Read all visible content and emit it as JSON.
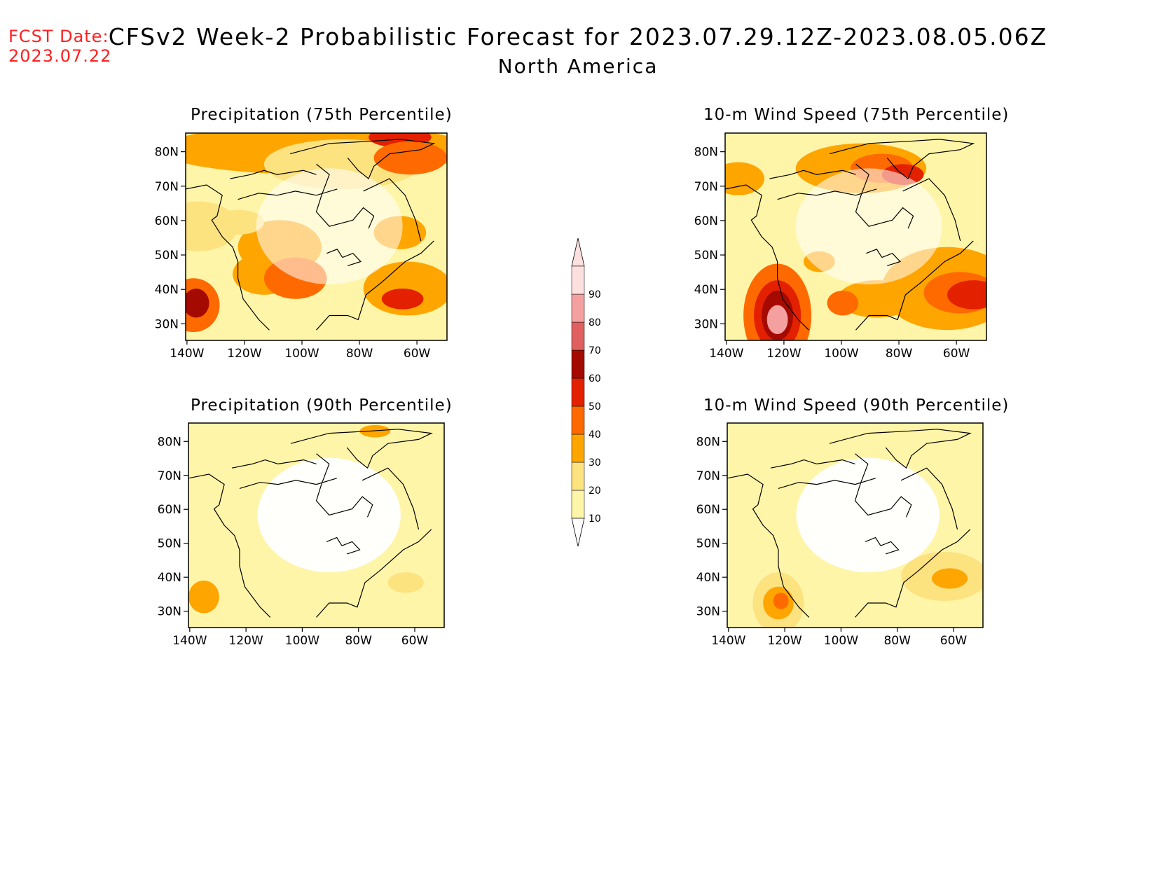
{
  "header": {
    "fcst_label": "FCST Date:",
    "fcst_date": "2023.07.22",
    "title": "CFSv2 Week-2 Probabilistic Forecast for 2023.07.29.12Z-2023.08.05.06Z",
    "subtitle": "North America"
  },
  "lat_labels": [
    "80N",
    "70N",
    "60N",
    "50N",
    "40N",
    "30N"
  ],
  "lon_labels": [
    "140W",
    "120W",
    "100W",
    "80W",
    "60W"
  ],
  "panels": [
    {
      "title": "Precipitation (75th Percentile)",
      "variable": "precipitation",
      "percentile": 75
    },
    {
      "title": "10-m Wind Speed (75th Percentile)",
      "variable": "wind",
      "percentile": 75
    },
    {
      "title": "Precipitation (90th Percentile)",
      "variable": "precipitation",
      "percentile": 90
    },
    {
      "title": "10-m Wind Speed (90th Percentile)",
      "variable": "wind",
      "percentile": 90
    }
  ],
  "colorbar": {
    "labels": [
      "10",
      "20",
      "30",
      "40",
      "50",
      "60",
      "70",
      "80",
      "90"
    ],
    "colors": [
      "#fff5a8",
      "#fde280",
      "#ffa500",
      "#ff6a00",
      "#e32000",
      "#a50a00",
      "#e06060",
      "#f4a0a0",
      "#fce0e0"
    ]
  }
}
